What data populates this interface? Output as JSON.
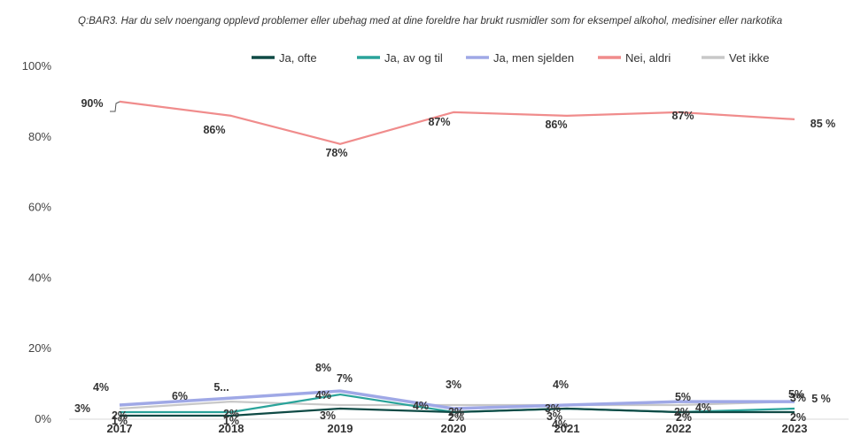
{
  "chart_data": {
    "type": "line",
    "title": "Q:BAR3. Har du selv noengang opplevd problemer eller ubehag med at dine foreldre har brukt rusmidler som for eksempel alkohol, medisiner eller narkotika",
    "x": [
      "2017",
      "2018",
      "2019",
      "2020",
      "2021",
      "2022",
      "2023"
    ],
    "ylim": [
      0,
      100
    ],
    "yticks": [
      "0%",
      "20%",
      "40%",
      "60%",
      "80%",
      "100%"
    ],
    "legend_position": "top",
    "grid": false,
    "series": [
      {
        "name": "Ja, ofte",
        "color": "#0f4a45",
        "values": [
          1,
          1,
          3,
          2,
          3,
          2,
          2
        ],
        "labels": [
          "1%",
          "1%",
          "3%",
          "2%",
          "3%",
          "2%",
          "2%"
        ]
      },
      {
        "name": "Ja, av og til",
        "color": "#2aa39a",
        "values": [
          2,
          2,
          7,
          2,
          3,
          2,
          3
        ],
        "labels": [
          "2%",
          "2%",
          "7%",
          "2%",
          "3%",
          "2%",
          "3%"
        ]
      },
      {
        "name": "Ja, men sjelden",
        "color": "#9fa8e6",
        "values": [
          4,
          6,
          8,
          3,
          4,
          5,
          5
        ],
        "labels": [
          "4%",
          "6%",
          "8%",
          "3%",
          "4%",
          "5%",
          "5%"
        ]
      },
      {
        "name": "Nei, aldri",
        "color": "#f08c8c",
        "values": [
          90,
          86,
          78,
          87,
          86,
          87,
          85
        ],
        "labels": [
          "90%",
          "86%",
          "78%",
          "87%",
          "86%",
          "87%",
          "85 %"
        ]
      },
      {
        "name": "Vet ikke",
        "color": "#c8c8c8",
        "values": [
          3,
          5,
          4,
          4,
          4,
          4,
          5
        ],
        "labels": [
          "3%",
          "5...",
          "4%",
          "4%",
          "4%",
          "4%",
          "5 %"
        ]
      }
    ]
  }
}
